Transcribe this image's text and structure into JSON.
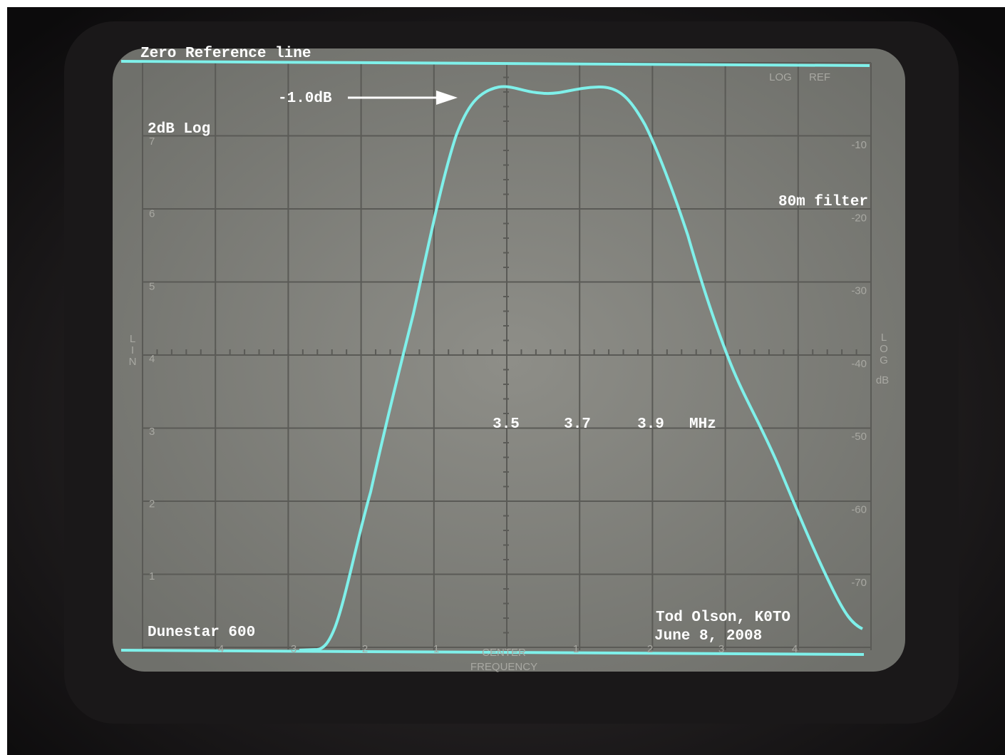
{
  "annotations": {
    "zero_ref": "Zero Reference line",
    "peak": "-1.0dB",
    "scale": "2dB Log",
    "filter": "80m filter",
    "freqs": [
      "3.5",
      "3.7",
      "3.9"
    ],
    "unit": "MHz",
    "device": "Dunestar 600",
    "author": "Tod Olson, K0TO",
    "date": "June 8, 2008"
  },
  "graticule": {
    "log_ref": [
      "LOG",
      "REF"
    ],
    "log_scale": [
      "-10",
      "-20",
      "-30",
      "-40",
      "-50",
      "-60",
      "-70"
    ],
    "lin_scale": [
      "7",
      "6",
      "5",
      "4",
      "3",
      "2",
      "1"
    ],
    "lin_label": [
      "L",
      "I",
      "N"
    ],
    "log_label": [
      "L",
      "O",
      "G"
    ],
    "db_label": "dB",
    "freq_marks": [
      "4",
      "3",
      "2",
      "1",
      "1",
      "2",
      "3",
      "4"
    ],
    "center": "CENTER",
    "frequency": "FREQUENCY"
  }
}
